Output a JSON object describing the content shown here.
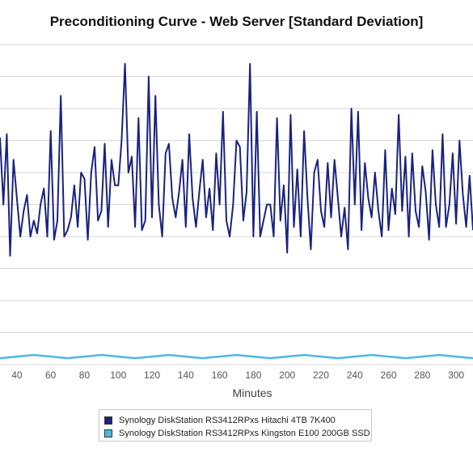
{
  "chart_data": {
    "type": "line",
    "title": "Preconditioning Curve - Web Server [Standard Deviation]",
    "xlabel": "Minutes",
    "ylabel": "",
    "xlim": [
      30,
      310
    ],
    "xticks": [
      40,
      60,
      80,
      100,
      120,
      140,
      160,
      180,
      200,
      220,
      240,
      260,
      280,
      300
    ],
    "ylim": [
      0,
      10
    ],
    "grid": true,
    "legend_position": "bottom",
    "series": [
      {
        "name": "Synology DiskStation RS3412RPxs Hitachi 4TB 7K400",
        "color": "#1a237e",
        "x": [
          30,
          32,
          34,
          36,
          38,
          40,
          42,
          44,
          46,
          48,
          50,
          52,
          54,
          56,
          58,
          60,
          62,
          64,
          66,
          68,
          70,
          72,
          74,
          76,
          78,
          80,
          82,
          84,
          86,
          88,
          90,
          92,
          94,
          96,
          98,
          100,
          102,
          104,
          106,
          108,
          110,
          112,
          114,
          116,
          118,
          120,
          122,
          124,
          126,
          128,
          130,
          132,
          134,
          136,
          138,
          140,
          142,
          144,
          146,
          148,
          150,
          152,
          154,
          156,
          158,
          160,
          162,
          164,
          166,
          168,
          170,
          172,
          174,
          176,
          178,
          180,
          182,
          184,
          186,
          188,
          190,
          192,
          194,
          196,
          198,
          200,
          202,
          204,
          206,
          208,
          210,
          212,
          214,
          216,
          218,
          220,
          222,
          224,
          226,
          228,
          230,
          232,
          234,
          236,
          238,
          240,
          242,
          244,
          246,
          248,
          250,
          252,
          254,
          256,
          258,
          260,
          262,
          264,
          266,
          268,
          270,
          272,
          274,
          276,
          278,
          280,
          282,
          284,
          286,
          288,
          290,
          292,
          294,
          296,
          298,
          300,
          302,
          304,
          306,
          308,
          310
        ],
        "values": [
          7.1,
          5.0,
          7.2,
          3.4,
          6.4,
          5.2,
          4.0,
          4.8,
          5.3,
          4.0,
          4.5,
          4.1,
          5.0,
          5.5,
          4.0,
          7.3,
          3.9,
          4.5,
          8.4,
          4.0,
          4.2,
          4.6,
          5.6,
          4.3,
          6.0,
          5.8,
          3.9,
          6.0,
          6.8,
          4.5,
          4.8,
          6.9,
          4.3,
          6.4,
          5.6,
          5.6,
          7.0,
          9.4,
          6.0,
          6.5,
          4.3,
          7.7,
          4.2,
          4.5,
          9.0,
          4.6,
          8.4,
          5.0,
          4.0,
          6.6,
          6.9,
          5.2,
          4.6,
          5.4,
          6.4,
          4.3,
          7.2,
          5.2,
          4.3,
          5.4,
          6.4,
          4.6,
          5.5,
          4.2,
          6.6,
          5.0,
          7.9,
          4.5,
          4.0,
          5.0,
          7.0,
          6.8,
          4.5,
          5.4,
          9.4,
          4.0,
          7.9,
          4.0,
          4.5,
          5.0,
          5.0,
          4.0,
          7.7,
          4.5,
          5.6,
          3.5,
          7.8,
          4.3,
          6.1,
          4.0,
          7.3,
          5.2,
          3.6,
          6.0,
          6.4,
          4.8,
          4.3,
          6.3,
          4.6,
          6.4,
          5.2,
          4.0,
          4.9,
          3.6,
          8.0,
          5.0,
          7.9,
          4.2,
          6.3,
          5.2,
          4.6,
          6.0,
          4.8,
          4.0,
          6.7,
          4.2,
          5.5,
          4.7,
          7.8,
          4.8,
          6.5,
          4.0,
          6.6,
          4.8,
          4.3,
          6.2,
          5.4,
          3.9,
          6.7,
          5.0,
          4.3,
          7.2,
          4.3,
          5.0,
          6.6,
          4.4,
          7.0,
          5.3,
          4.3,
          5.9,
          4.2
        ],
        "line_width": 2
      },
      {
        "name": "Synology DiskStation RS3412RPxs Kingston E100 200GB SSD",
        "color": "#4fb8e4",
        "x": [
          30,
          50,
          70,
          90,
          110,
          130,
          150,
          170,
          190,
          210,
          230,
          250,
          270,
          290,
          310
        ],
        "values": [
          0.2,
          0.3,
          0.2,
          0.3,
          0.2,
          0.3,
          0.2,
          0.3,
          0.2,
          0.3,
          0.2,
          0.3,
          0.2,
          0.3,
          0.2
        ],
        "line_width": 2.5
      }
    ]
  }
}
